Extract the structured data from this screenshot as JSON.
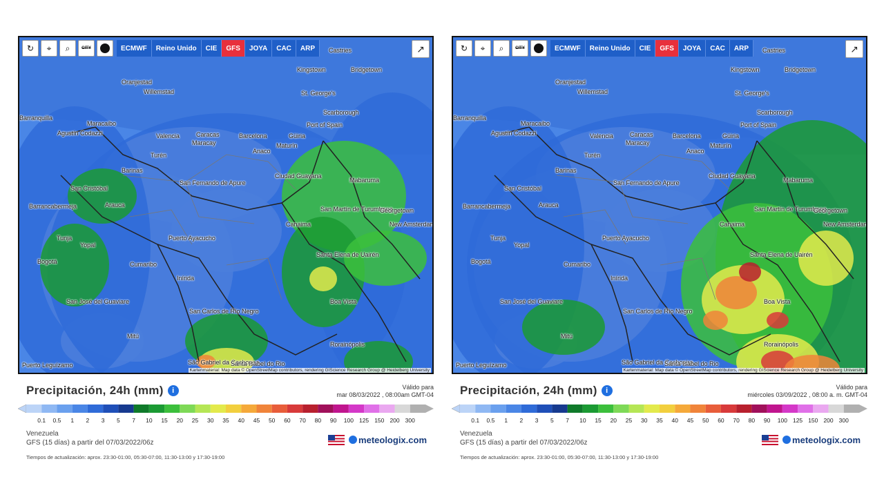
{
  "panels": [
    {
      "toolbar": {
        "city_label": "CITY",
        "models": [
          "ECMWF",
          "Reino Unido",
          "CIE",
          "GFS",
          "JOYA",
          "CAC",
          "ARP"
        ],
        "active_model": "GFS"
      },
      "cities": [
        "Castries",
        "Kingstown",
        "Bridgetown",
        "St. George's",
        "Oranjestad",
        "Willemstad",
        "Scarborough",
        "Port of Spain",
        "Barranquilla",
        "Maracaibo",
        "Agustín Codazzi",
        "Valencia",
        "Caracas",
        "Maracay",
        "Barcelona",
        "Güiria",
        "Anaco",
        "Maturín",
        "Barinas",
        "Turén",
        "San Cristóbal",
        "San Fernando de Apure",
        "Ciudad Guayana",
        "Mabaruma",
        "Barrancabermeja",
        "Arauca",
        "San Martín de Turumbang",
        "Georgetown",
        "New Amsterdam",
        "Tunja",
        "Yopal",
        "Canaima",
        "Puerto Ayacucho",
        "Bogotá",
        "Cumaribo",
        "Santa Elena de Uairén",
        "Inírida",
        "San José del Guaviare",
        "Boa Vista",
        "San Carlos de Río Negro",
        "Mitú",
        "Rorainópolis",
        "São Gabriel da Cachoeira",
        "Santa Isabel do Rio",
        "Puerto Leguízamo"
      ],
      "attribution": "Kartenmaterial: Map data © OpenStreetMap contributors, rendering GIScience Research Group @ Heidelberg University",
      "title": "Precipitación, 24h (mm)",
      "valid_label": "Válido para",
      "valid_date": "mar 08/03/2022 , 08:00am GMT-04",
      "region": "Venezuela",
      "model_run": "GFS (15 días) a partir del 07/03/2022/06z",
      "brand": "meteologix.com",
      "update_times": "Tiempos de actualización: aprox. 23:30-01:00, 05:30-07:00, 11:30-13:00 y 17:30-19:00"
    },
    {
      "toolbar": {
        "city_label": "CITY",
        "models": [
          "ECMWF",
          "Reino Unido",
          "CIE",
          "GFS",
          "JOYA",
          "CAC",
          "ARP"
        ],
        "active_model": "GFS"
      },
      "cities": [
        "Castries",
        "Kingstown",
        "Bridgetown",
        "St. George's",
        "Oranjestad",
        "Willemstad",
        "Scarborough",
        "Port of Spain",
        "Barranquilla",
        "Maracaibo",
        "Agustín Codazzi",
        "Valencia",
        "Caracas",
        "Maracay",
        "Barcelona",
        "Güiria",
        "Anaco",
        "Maturín",
        "Barinas",
        "Turén",
        "San Cristóbal",
        "San Fernando de Apure",
        "Ciudad Guayana",
        "Mabaruma",
        "Barrancabermeja",
        "Arauca",
        "San Martín de Turumbang",
        "Georgetown",
        "New Amsterdam",
        "Tunja",
        "Yopal",
        "Canaima",
        "Puerto Ayacucho",
        "Bogotá",
        "Cumaribo",
        "Santa Elena de Uairén",
        "Inírida",
        "San José del Guaviare",
        "Boa Vista",
        "San Carlos de Río Negro",
        "Mitú",
        "Rorainópolis",
        "São Gabriel da Cachoeira",
        "Santa Isabel do Rio",
        "Puerto Leguízamo"
      ],
      "attribution": "Kartenmaterial: Map data © OpenStreetMap contributors, rendering GIScience Research Group @ Heidelberg University",
      "title": "Precipitación, 24h (mm)",
      "valid_label": "Válido para",
      "valid_date": "miércoles 03/09/2022 , 08:00 a. m. GMT-04",
      "region": "Venezuela",
      "model_run": "GFS (15 días) a partir del 07/03/2022/06z",
      "brand": "meteologix.com",
      "update_times": "Tiempos de actualización: aprox. 23:30-01:00, 05:30-07:00, 11:30-13:00 y 17:30-19:00"
    }
  ],
  "legend": {
    "values": [
      "0.1",
      "0.5",
      "1",
      "2",
      "3",
      "5",
      "7",
      "10",
      "15",
      "20",
      "25",
      "30",
      "35",
      "40",
      "45",
      "50",
      "60",
      "70",
      "80",
      "90",
      "100",
      "125",
      "150",
      "200",
      "300"
    ],
    "colors": [
      "#bcd4f7",
      "#8fb8f3",
      "#6aa0ee",
      "#4a86e6",
      "#2f6bd8",
      "#1f4fb8",
      "#173a8f",
      "#0f7a2a",
      "#1b9a33",
      "#3cbf3c",
      "#7ed957",
      "#b5e655",
      "#e3ea4c",
      "#f2cf3e",
      "#f5a93a",
      "#f0843a",
      "#e85d3a",
      "#d83a3a",
      "#b8202e",
      "#a0105a",
      "#c0158e",
      "#d438c8",
      "#e070e8",
      "#eaa8f0",
      "#d8d8d8",
      "#b0b0b0"
    ]
  }
}
